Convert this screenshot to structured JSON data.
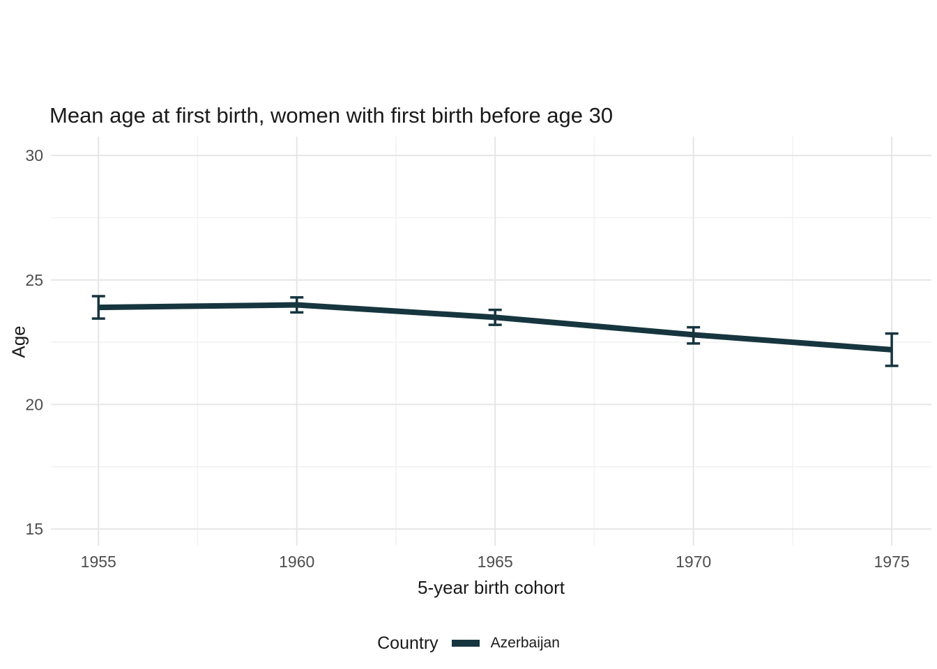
{
  "title": "Mean age at first birth, women with first birth before age 30",
  "chart_data": {
    "type": "line",
    "title": "Mean age at first birth, women with first birth before age 30",
    "xlabel": "5-year birth cohort",
    "ylabel": "Age",
    "x": [
      1955,
      1960,
      1965,
      1970,
      1975
    ],
    "x_tick_labels": [
      "1955",
      "1960",
      "1965",
      "1970",
      "1975"
    ],
    "y_ticks": [
      15,
      20,
      25,
      30
    ],
    "y_tick_labels": [
      "15",
      "20",
      "25",
      "30"
    ],
    "x_minor_ticks": [
      1957.5,
      1962.5,
      1967.5,
      1972.5
    ],
    "y_minor_ticks": [
      17.5,
      22.5,
      27.5
    ],
    "xlim": [
      1953.8,
      1976.0
    ],
    "ylim": [
      14.33,
      30.76
    ],
    "grid": true,
    "legend_position": "bottom",
    "series": [
      {
        "name": "Azerbaijan",
        "values": [
          23.9,
          24.0,
          23.5,
          22.8,
          22.2
        ],
        "ci_low": [
          23.45,
          23.7,
          23.2,
          22.45,
          21.55
        ],
        "ci_high": [
          24.35,
          24.3,
          23.8,
          23.1,
          22.85
        ],
        "color": "#16353F"
      }
    ]
  },
  "legend": {
    "title": "Country",
    "entries": [
      {
        "label": "Azerbaijan",
        "color": "#16353F"
      }
    ]
  },
  "colors": {
    "background": "#ffffff",
    "grid_major": "#e6e6e6",
    "grid_minor": "#f1f1f1",
    "title_text": "#1a1a1a",
    "axis_title_text": "#1a1a1a",
    "tick_text": "#4d4d4d",
    "series": "#16353F"
  }
}
